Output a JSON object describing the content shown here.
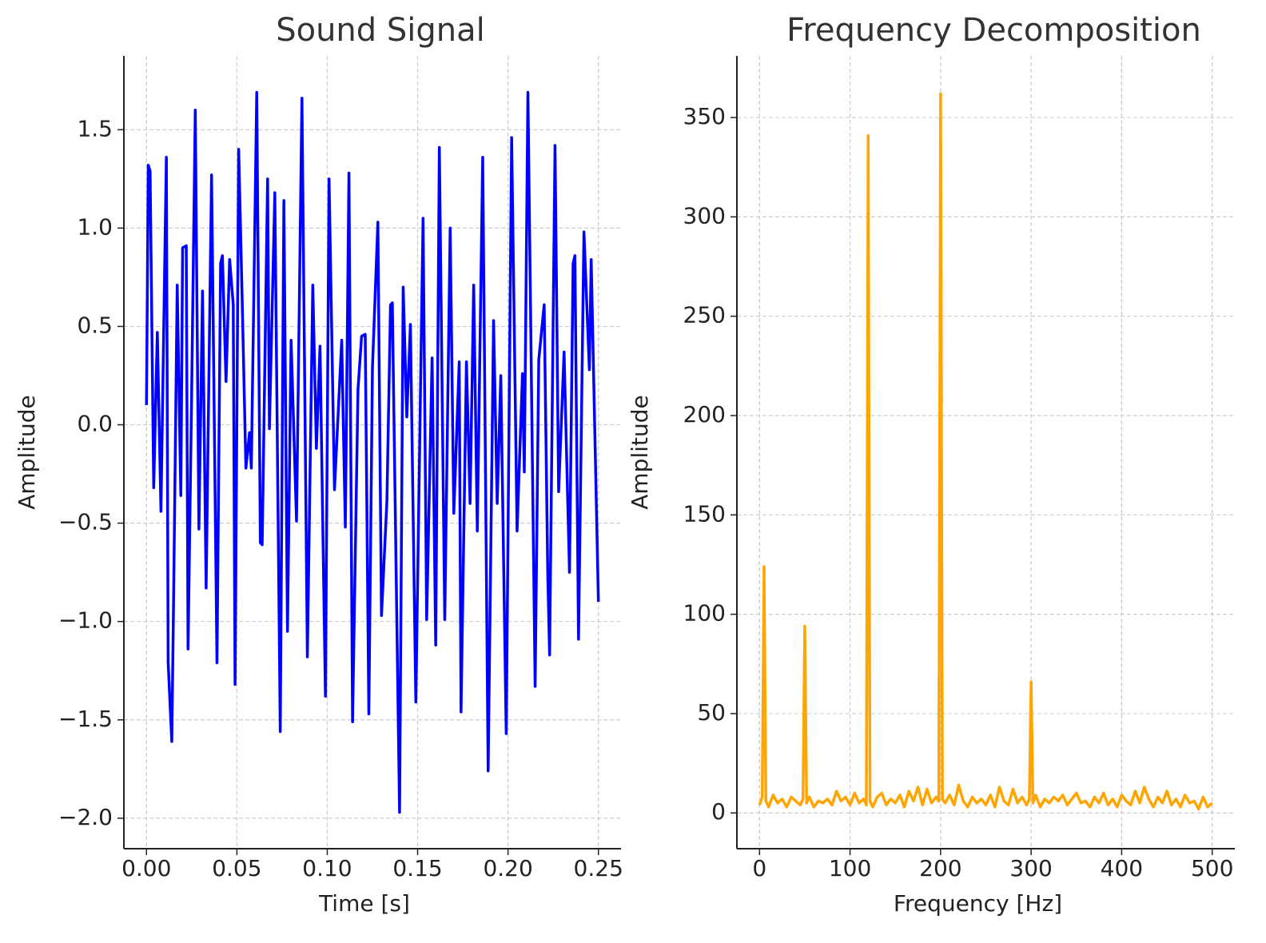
{
  "chart_data": [
    {
      "type": "line",
      "title": "Sound Signal",
      "xlabel": "Time [s]",
      "ylabel": "Amplitude",
      "color": "#0000ff",
      "grid": true,
      "x": [
        0.0,
        0.001,
        0.002,
        0.004,
        0.006,
        0.008,
        0.011,
        0.012,
        0.014,
        0.015,
        0.017,
        0.019,
        0.02,
        0.022,
        0.023,
        0.025,
        0.027,
        0.029,
        0.031,
        0.033,
        0.036,
        0.039,
        0.041,
        0.042,
        0.044,
        0.046,
        0.048,
        0.049,
        0.051,
        0.053,
        0.055,
        0.057,
        0.058,
        0.061,
        0.063,
        0.064,
        0.067,
        0.068,
        0.071,
        0.074,
        0.076,
        0.078,
        0.08,
        0.083,
        0.086,
        0.089,
        0.092,
        0.094,
        0.096,
        0.099,
        0.101,
        0.104,
        0.108,
        0.11,
        0.112,
        0.114,
        0.117,
        0.119,
        0.121,
        0.123,
        0.125,
        0.128,
        0.13,
        0.133,
        0.135,
        0.136,
        0.14,
        0.142,
        0.144,
        0.146,
        0.149,
        0.153,
        0.155,
        0.158,
        0.16,
        0.162,
        0.165,
        0.168,
        0.17,
        0.173,
        0.174,
        0.177,
        0.179,
        0.181,
        0.183,
        0.186,
        0.189,
        0.192,
        0.194,
        0.196,
        0.199,
        0.202,
        0.205,
        0.208,
        0.209,
        0.211,
        0.215,
        0.217,
        0.22,
        0.222,
        0.223,
        0.226,
        0.228,
        0.231,
        0.234,
        0.236,
        0.237,
        0.239,
        0.242,
        0.245,
        0.246,
        0.25
      ],
      "values": [
        0.1,
        1.32,
        1.29,
        -0.32,
        0.47,
        -0.44,
        1.36,
        -1.21,
        -1.61,
        -0.89,
        0.71,
        -0.36,
        0.9,
        0.91,
        -1.14,
        0.17,
        1.6,
        -0.53,
        0.68,
        -0.83,
        1.27,
        -1.21,
        0.82,
        0.86,
        0.22,
        0.84,
        0.61,
        -1.32,
        1.4,
        0.61,
        -0.22,
        -0.04,
        -0.22,
        1.69,
        -0.6,
        -0.61,
        1.25,
        -0.02,
        1.18,
        -1.56,
        1.14,
        -1.05,
        0.43,
        -0.49,
        1.66,
        -1.18,
        0.71,
        -0.12,
        0.4,
        -1.38,
        1.25,
        -0.33,
        0.43,
        -0.52,
        1.28,
        -1.51,
        0.18,
        0.45,
        0.46,
        -1.47,
        0.29,
        1.03,
        -0.97,
        -0.39,
        0.61,
        0.62,
        -1.97,
        0.7,
        0.04,
        0.51,
        -1.41,
        1.05,
        -0.99,
        0.34,
        -1.12,
        1.41,
        -0.99,
        1.0,
        -0.45,
        0.32,
        -1.46,
        0.32,
        -0.4,
        0.71,
        -0.54,
        1.36,
        -1.76,
        0.53,
        -0.4,
        0.25,
        -1.57,
        1.46,
        -0.54,
        0.26,
        -0.24,
        1.69,
        -1.33,
        0.33,
        0.61,
        -0.77,
        -1.17,
        1.42,
        -0.34,
        0.37,
        -0.75,
        0.82,
        0.86,
        -1.09,
        0.98,
        0.28,
        0.84,
        -0.9
      ],
      "xlim": [
        -0.0125,
        0.2625
      ],
      "xticks": [
        {
          "value": 0,
          "label": "0.00"
        },
        {
          "value": 0.05,
          "label": "0.05"
        },
        {
          "value": 0.1,
          "label": "0.10"
        },
        {
          "value": 0.15,
          "label": "0.15"
        },
        {
          "value": 0.2,
          "label": "0.20"
        },
        {
          "value": 0.25,
          "label": "0.25"
        }
      ],
      "ylim": [
        -2.155,
        1.875
      ],
      "yticks": [
        {
          "value": -2,
          "label": "−2.0"
        },
        {
          "value": -1.5,
          "label": "−1.5"
        },
        {
          "value": -1,
          "label": "−1.0"
        },
        {
          "value": -0.5,
          "label": "−0.5"
        },
        {
          "value": 0,
          "label": "0.0"
        },
        {
          "value": 0.5,
          "label": "0.5"
        },
        {
          "value": 1,
          "label": "1.0"
        },
        {
          "value": 1.5,
          "label": "1.5"
        }
      ]
    },
    {
      "type": "line",
      "title": "Frequency Decomposition",
      "xlabel": "Frequency [Hz]",
      "ylabel": "Amplitude",
      "color": "#ffa500",
      "grid": true,
      "x": [
        0,
        3,
        5,
        7,
        10,
        15,
        20,
        25,
        30,
        35,
        40,
        45,
        48,
        50,
        52,
        55,
        60,
        65,
        70,
        75,
        80,
        85,
        90,
        95,
        100,
        105,
        110,
        115,
        118,
        120,
        122,
        125,
        130,
        135,
        140,
        145,
        150,
        155,
        160,
        165,
        170,
        175,
        180,
        185,
        190,
        195,
        198,
        200,
        202,
        205,
        210,
        215,
        220,
        225,
        230,
        235,
        240,
        245,
        250,
        255,
        260,
        265,
        270,
        275,
        280,
        285,
        290,
        295,
        298,
        300,
        302,
        305,
        310,
        315,
        320,
        325,
        330,
        335,
        340,
        345,
        350,
        355,
        360,
        365,
        370,
        375,
        380,
        385,
        390,
        395,
        400,
        405,
        410,
        415,
        420,
        425,
        430,
        435,
        440,
        445,
        450,
        455,
        460,
        465,
        470,
        475,
        480,
        485,
        490,
        495,
        500
      ],
      "values": [
        4,
        8,
        124,
        6,
        3,
        9,
        5,
        7,
        3,
        8,
        6,
        4,
        7,
        94,
        5,
        8,
        3,
        6,
        5,
        7,
        4,
        11,
        6,
        8,
        4,
        10,
        5,
        7,
        4,
        341,
        6,
        3,
        8,
        10,
        4,
        7,
        5,
        9,
        3,
        11,
        6,
        13,
        4,
        12,
        5,
        8,
        6,
        362,
        7,
        5,
        9,
        4,
        14,
        6,
        3,
        8,
        5,
        7,
        4,
        9,
        3,
        13,
        6,
        4,
        12,
        5,
        8,
        4,
        7,
        66,
        5,
        9,
        3,
        7,
        5,
        8,
        6,
        9,
        4,
        7,
        10,
        5,
        6,
        3,
        8,
        5,
        10,
        4,
        7,
        3,
        9,
        6,
        4,
        11,
        5,
        13,
        7,
        3,
        8,
        5,
        11,
        4,
        7,
        3,
        9,
        5,
        6,
        2,
        8,
        3,
        5
      ],
      "xlim": [
        -25,
        525
      ],
      "xticks": [
        0,
        100,
        200,
        300,
        400,
        500
      ],
      "ylim": [
        -18,
        381
      ],
      "yticks": [
        0,
        50,
        100,
        150,
        200,
        250,
        300,
        350
      ]
    }
  ]
}
